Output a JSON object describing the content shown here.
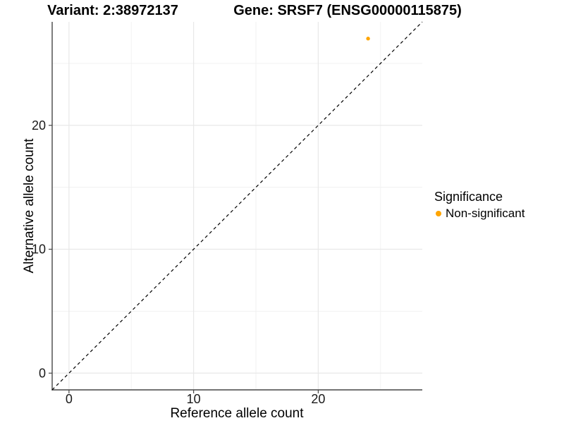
{
  "chart_data": {
    "type": "scatter",
    "titles": [
      {
        "text": "Variant: 2:38972137"
      },
      {
        "text": "Gene: SRSF7 (ENSG00000115875)"
      }
    ],
    "xlabel": "Reference allele count",
    "ylabel": "Alternative allele count",
    "xlim": [
      -1.35,
      28.35
    ],
    "ylim": [
      -1.35,
      28.35
    ],
    "x_ticks": [
      0,
      10,
      20
    ],
    "y_ticks": [
      0,
      10,
      20
    ],
    "x_minor_gridlines": [
      5,
      15,
      25
    ],
    "y_minor_gridlines": [
      5,
      15,
      25
    ],
    "grid": "major+minor, light grey on white",
    "reference_line": {
      "type": "identity y=x",
      "style": "dashed",
      "color": "#000000"
    },
    "series": [
      {
        "name": "Non-significant",
        "color": "#FFA500",
        "points": [
          {
            "x": 24,
            "y": 27
          }
        ]
      }
    ],
    "legend": {
      "title": "Significance",
      "position": "right",
      "items": [
        {
          "label": "Non-significant",
          "color": "#FFA500"
        }
      ]
    }
  },
  "colors": {
    "background": "#FFFFFF",
    "axis_line": "#464646",
    "tick_mark": "#464646",
    "grid_major": "#E8E8E8",
    "grid_minor": "#F1F1F1",
    "identity_line": "#000000",
    "point_orange": "#FFA500"
  }
}
